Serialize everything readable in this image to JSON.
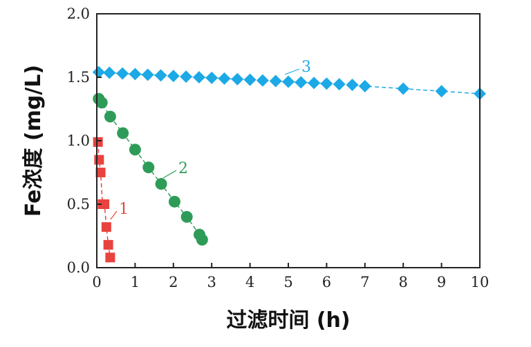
{
  "chart_data": {
    "type": "scatter",
    "xlabel": "过滤时间 (h)",
    "ylabel": "Fe浓度 (mg/L)",
    "xlim": [
      0,
      10
    ],
    "ylim": [
      0,
      2.0
    ],
    "xticks": [
      "0",
      "1",
      "2",
      "3",
      "4",
      "5",
      "6",
      "7",
      "8",
      "9",
      "10"
    ],
    "yticks": [
      "0.0",
      "0.5",
      "1.0",
      "1.5",
      "2.0"
    ],
    "grid": false,
    "series": [
      {
        "name": "1",
        "color": "#e8433f",
        "marker": "square",
        "x": [
          0.03,
          0.06,
          0.1,
          0.15,
          0.2,
          0.25,
          0.3,
          0.35
        ],
        "y": [
          0.99,
          0.85,
          0.75,
          0.5,
          0.5,
          0.32,
          0.18,
          0.08
        ]
      },
      {
        "name": "2",
        "color": "#2e9c58",
        "marker": "circle",
        "x": [
          0.05,
          0.13,
          0.35,
          0.68,
          1.0,
          1.35,
          1.68,
          2.03,
          2.35,
          2.68,
          2.75
        ],
        "y": [
          1.33,
          1.3,
          1.19,
          1.06,
          0.93,
          0.79,
          0.66,
          0.52,
          0.4,
          0.26,
          0.22
        ]
      },
      {
        "name": "3",
        "color": "#1ca9e6",
        "marker": "diamond",
        "x": [
          0.05,
          0.33,
          0.67,
          1.0,
          1.33,
          1.67,
          2.0,
          2.33,
          2.67,
          3.0,
          3.33,
          3.67,
          4.0,
          4.33,
          4.67,
          5.0,
          5.33,
          5.67,
          6.0,
          6.33,
          6.67,
          7.0,
          8.0,
          9.0,
          10.0
        ],
        "y": [
          1.54,
          1.535,
          1.53,
          1.525,
          1.52,
          1.515,
          1.51,
          1.505,
          1.5,
          1.495,
          1.49,
          1.485,
          1.48,
          1.475,
          1.47,
          1.465,
          1.46,
          1.455,
          1.45,
          1.445,
          1.44,
          1.43,
          1.41,
          1.39,
          1.37
        ]
      }
    ]
  }
}
